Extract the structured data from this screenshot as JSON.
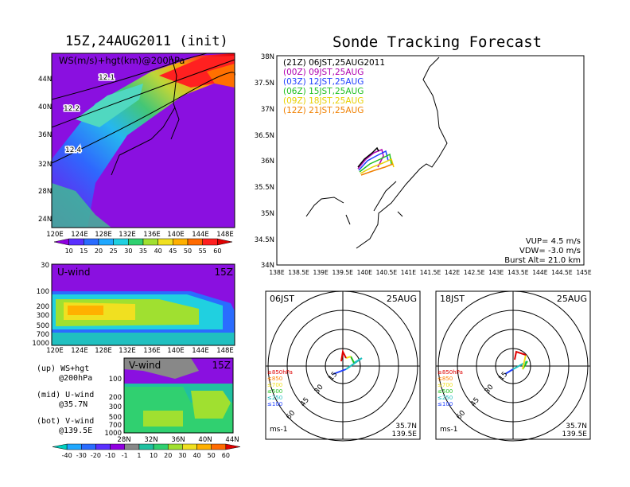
{
  "init_title": "15Z,24AUG2011 (init)",
  "forecast_title": "Sonde Tracking Forecast",
  "map": {
    "label": "WS(m/s)+hgt(km)@200hPa",
    "lon_ticks": [
      "120E",
      "124E",
      "128E",
      "132E",
      "136E",
      "140E",
      "144E",
      "148E"
    ],
    "lat_ticks": [
      "44N",
      "40N",
      "36N",
      "32N",
      "28N",
      "24N"
    ],
    "contour_labels": [
      "12.1",
      "12.2",
      "12.4"
    ],
    "colorbar_ticks": [
      "10",
      "15",
      "20",
      "25",
      "30",
      "35",
      "40",
      "45",
      "50",
      "55",
      "60"
    ]
  },
  "u_panel": {
    "label": "U-wind",
    "time": "15Z",
    "p_ticks": [
      "30",
      "100",
      "200",
      "300",
      "500",
      "700",
      "1000"
    ],
    "lon_ticks": [
      "120E",
      "124E",
      "128E",
      "132E",
      "136E",
      "140E",
      "144E",
      "148E"
    ]
  },
  "v_panel": {
    "label": "V-wind",
    "time": "15Z",
    "p_ticks": [
      "100",
      "200",
      "300",
      "500",
      "700",
      "1000"
    ],
    "lat_ticks": [
      "28N",
      "32N",
      "36N",
      "40N",
      "44N"
    ]
  },
  "legend_notes": [
    {
      "a": "(up) WS+hgt",
      "b": "@200hPa"
    },
    {
      "a": "(mid) U-wind",
      "b": "@35.7N"
    },
    {
      "a": "(bot) V-wind",
      "b": "@139.5E"
    }
  ],
  "bottom_colorbar_ticks": [
    "-40",
    "-30",
    "-20",
    "-10",
    "-1",
    "1",
    "10",
    "20",
    "30",
    "40",
    "50",
    "60"
  ],
  "track_map": {
    "lat_ticks": [
      "38N",
      "37.5N",
      "37N",
      "36.5N",
      "36N",
      "35.5N",
      "35N",
      "34.5N",
      "34N"
    ],
    "lon_ticks": [
      "138E",
      "138.5E",
      "139E",
      "139.5E",
      "140E",
      "140.5E",
      "141E",
      "141.5E",
      "142E",
      "142.5E",
      "143E",
      "143.5E",
      "144E",
      "144.5E",
      "145E"
    ],
    "legend": [
      {
        "label": "(21Z) 06JST,25AUG2011",
        "color": "#000000"
      },
      {
        "label": "(00Z) 09JST,25AUG",
        "color": "#b000b0"
      },
      {
        "label": "(03Z) 12JST,25AUG",
        "color": "#2040ff"
      },
      {
        "label": "(06Z) 15JST,25AUG",
        "color": "#20c020"
      },
      {
        "label": "(09Z) 18JST,25AUG",
        "color": "#e8d000"
      },
      {
        "label": "(12Z) 21JST,25AUG",
        "color": "#f08000"
      }
    ],
    "params": {
      "vup": "VUP= 4.5 m/s",
      "vdw": "VDW= -3.0 m/s",
      "burst": "Burst Alt= 21.0 km"
    }
  },
  "hodographs": [
    {
      "time": "06JST",
      "date": "25AUG",
      "lat": "35.7N",
      "lon": "139.5E",
      "unit": "ms-1",
      "rings": [
        "15",
        "30",
        "45",
        "60"
      ],
      "levels": [
        "≥850hPa",
        "≤850",
        "≤700",
        "≤500",
        "≤250",
        "≤100"
      ]
    },
    {
      "time": "18JST",
      "date": "25AUG",
      "lat": "35.7N",
      "lon": "139.5E",
      "unit": "ms-1",
      "rings": [
        "15",
        "30",
        "45",
        "60"
      ],
      "levels": [
        "≥850hPa",
        "≤850",
        "≤700",
        "≤500",
        "≤250",
        "≤100"
      ]
    }
  ],
  "colors": {
    "ws_scale": [
      "#9000e0",
      "#5a30ff",
      "#2a6cff",
      "#20a8ff",
      "#20d0e0",
      "#30d070",
      "#a0e030",
      "#f0e020",
      "#ffb000",
      "#ff6a00",
      "#ff2020",
      "#e00000"
    ]
  }
}
